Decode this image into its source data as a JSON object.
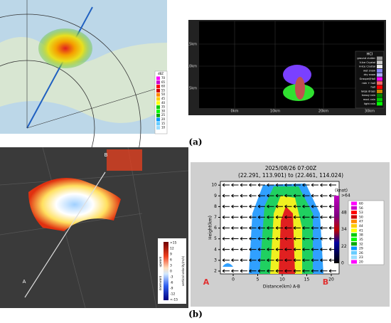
{
  "panel_a": {
    "label": "(a)",
    "map_legend": {
      "title": "dBZ",
      "values": [
        "70",
        "65",
        "60",
        "55",
        "50",
        "45",
        "40",
        "35",
        "30",
        "25",
        "20",
        "15",
        "10"
      ]
    },
    "rhi": {
      "y_ticks": [
        "15km",
        "10km",
        "5km"
      ],
      "x_ticks": [
        "0km",
        "10km",
        "20km",
        "30km"
      ],
      "legend_title": "HCI",
      "classes": [
        "ground clutter",
        "V-Ice Crystal",
        "H-Ice Crystal",
        "wet snow",
        "dry snow",
        "Graupel/Hail",
        "rain + hail",
        "hail",
        "large drops",
        "heavy rain",
        "mod. rain",
        "light rain"
      ]
    }
  },
  "panel_b": {
    "label": "(b)",
    "map_points": [
      "A",
      "B"
    ],
    "colorbar": {
      "ticks": [
        ">15",
        "12",
        "9",
        "6",
        "3",
        "0",
        "-3",
        "-6",
        "-9",
        "-12",
        "<-15"
      ],
      "upward": "upward",
      "downward": "downward",
      "title": "vertical velocity(m/s)"
    },
    "section": {
      "title": "2025/08/26 07:00Z",
      "subtitle": "(22.291, 113.901) to (22.461, 114.024)",
      "ylabel": "Height(km)",
      "xlabel": "Distance(km) A-B",
      "xticks": [
        "0",
        "5",
        "10",
        "15",
        "20"
      ],
      "yticks": [
        "2",
        "3",
        "4",
        "5",
        "6",
        "7",
        "8",
        "9",
        "10"
      ],
      "endpoints": [
        "A",
        "B"
      ],
      "wind_unit": "(knot)",
      "wind_ticks": [
        ">64",
        "48",
        "34",
        "22",
        "0"
      ],
      "reflectivity_ticks": [
        "60",
        "56",
        "53",
        "50",
        "47",
        "44",
        "41",
        "38",
        "35",
        "32",
        "29",
        "26",
        "23",
        "20"
      ]
    }
  }
}
